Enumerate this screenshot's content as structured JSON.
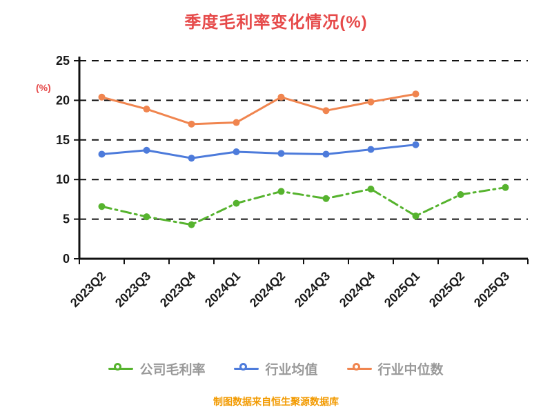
{
  "title": {
    "text": "季度毛利率变化情况(%)",
    "color": "#e64a4a"
  },
  "footer": {
    "text": "制图数据来自恒生聚源数据库",
    "color": "#f29a00"
  },
  "chart_data": {
    "type": "line",
    "title": "季度毛利率变化情况(%)",
    "categories": [
      "2023Q2",
      "2023Q3",
      "2023Q4",
      "2024Q1",
      "2024Q2",
      "2024Q3",
      "2024Q4",
      "2025Q1",
      "2025Q2",
      "2025Q3"
    ],
    "series": [
      {
        "name": "公司毛利率",
        "color": "#56b32e",
        "style": "dashdot",
        "values": [
          6.6,
          5.3,
          4.3,
          7.0,
          8.5,
          7.6,
          8.8,
          5.4,
          8.1,
          9.0
        ]
      },
      {
        "name": "行业均值",
        "color": "#4d7bdb",
        "style": "solid",
        "values": [
          13.2,
          13.7,
          12.7,
          13.5,
          13.3,
          13.2,
          13.8,
          14.4,
          null,
          null
        ]
      },
      {
        "name": "行业中位数",
        "color": "#f0854f",
        "style": "solid",
        "values": [
          20.4,
          18.9,
          17.0,
          17.2,
          20.4,
          18.7,
          19.8,
          20.8,
          null,
          null
        ]
      }
    ],
    "xlabel": "",
    "ylabel": "(%)",
    "ylabel_color": "#e64a4a",
    "ylim": [
      0,
      25
    ],
    "ytick_step": 5,
    "grid": "dashed-horizontal",
    "legend_position": "bottom",
    "axis_color": "#111111",
    "tick_label_color": "#1a1a1a",
    "legend_text_color": "#999999"
  }
}
